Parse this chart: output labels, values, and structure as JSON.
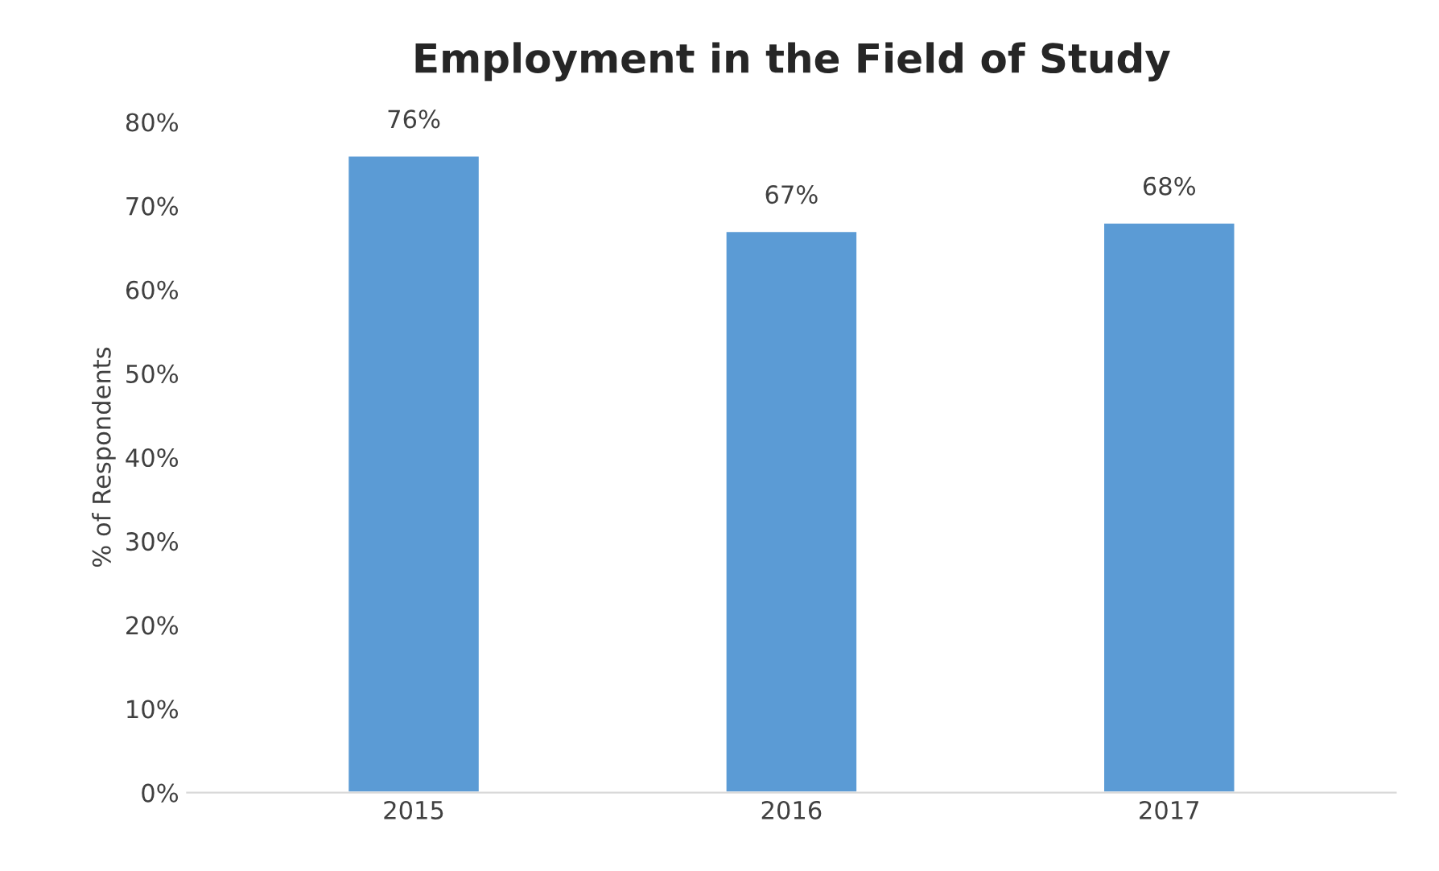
{
  "chart_data": {
    "type": "bar",
    "title": "Employment in the Field of Study",
    "ylabel": "% of Respondents",
    "categories": [
      "2015",
      "2016",
      "2017"
    ],
    "values": [
      76,
      67,
      68
    ],
    "value_labels": [
      "76%",
      "67%",
      "68%"
    ],
    "color": "#5b9bd5",
    "ylim": [
      0,
      80
    ],
    "yticks": [
      {
        "value": 0,
        "label": "0%"
      },
      {
        "value": 10,
        "label": "10%"
      },
      {
        "value": 20,
        "label": "20%"
      },
      {
        "value": 30,
        "label": "30%"
      },
      {
        "value": 40,
        "label": "40%"
      },
      {
        "value": 50,
        "label": "50%"
      },
      {
        "value": 60,
        "label": "60%"
      },
      {
        "value": 70,
        "label": "70%"
      },
      {
        "value": 80,
        "label": "80%"
      }
    ],
    "grid": false,
    "legend": false
  }
}
